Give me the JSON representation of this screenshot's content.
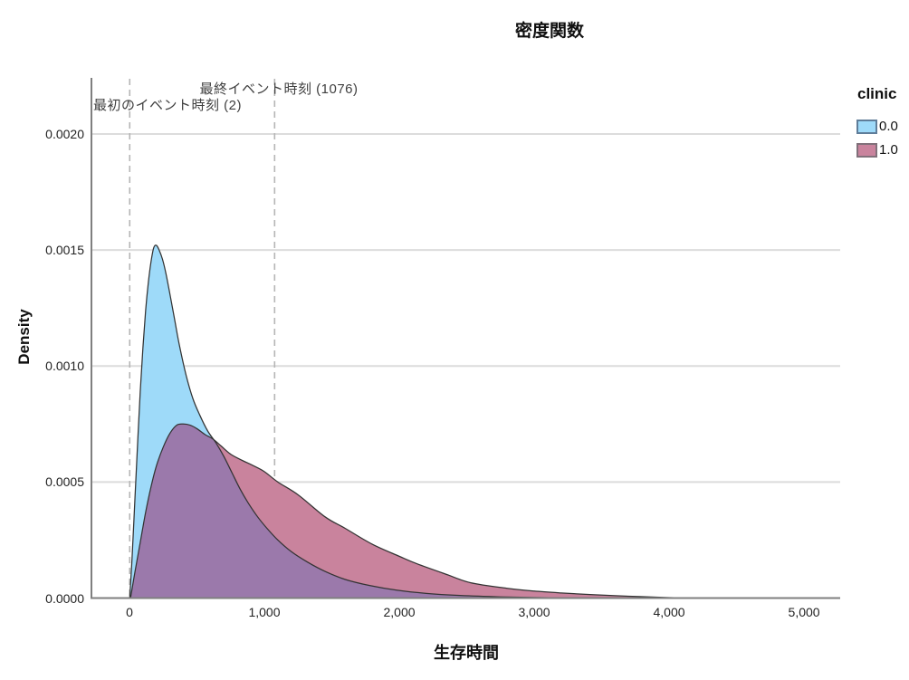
{
  "window": {
    "background": "#ffffff"
  },
  "title": "密度関数",
  "legend": {
    "title": "clinic",
    "items": [
      {
        "label": "0.0",
        "swatch_color": "#9EDAF9",
        "swatch_border": "#5f7d99"
      },
      {
        "label": "1.0",
        "swatch_color": "#C9839D",
        "swatch_border": "#80707a"
      }
    ]
  },
  "chart_data": {
    "type": "area",
    "subtype": "density-curves",
    "title": "密度関数",
    "xlabel": "生存時間",
    "ylabel": "Density",
    "xlim": [
      -275,
      5268
    ],
    "ylim": [
      0,
      0.002238
    ],
    "grid": "horizontal",
    "legend_position": "top-right",
    "legend_title": "clinic",
    "xticks": [
      {
        "value": 0,
        "label": "0"
      },
      {
        "value": 1000,
        "label": "1,000"
      },
      {
        "value": 2000,
        "label": "2,000"
      },
      {
        "value": 3000,
        "label": "3,000"
      },
      {
        "value": 4000,
        "label": "4,000"
      },
      {
        "value": 5000,
        "label": "5,000"
      }
    ],
    "yticks": [
      {
        "value": 0.0,
        "label": "0.0000"
      },
      {
        "value": 0.0005,
        "label": "0.0005"
      },
      {
        "value": 0.001,
        "label": "0.0010"
      },
      {
        "value": 0.0015,
        "label": "0.0015"
      },
      {
        "value": 0.002,
        "label": "0.0020"
      }
    ],
    "reference_lines": [
      {
        "value": 2,
        "label": "最初のイベント時刻 (2)",
        "style": "dashed",
        "color": "#b5b5b5"
      },
      {
        "value": 1076,
        "label": "最終イベント時刻 (1076)",
        "style": "dashed",
        "color": "#b5b5b5"
      }
    ],
    "overlap_color": "#9B79AB",
    "outline_color": "#333333",
    "gridline_color": "#dcdcdc",
    "axis_color": "#7f7f7f",
    "series": [
      {
        "name": "0.0",
        "fill_color": "#9EDAF9",
        "peak": {
          "x": 200,
          "y": 0.00152
        },
        "points": [
          [
            2,
            0
          ],
          [
            20,
            0.00018
          ],
          [
            40,
            0.00042
          ],
          [
            60,
            0.00066
          ],
          [
            80,
            0.00089
          ],
          [
            100,
            0.00108
          ],
          [
            120,
            0.00124
          ],
          [
            140,
            0.00136
          ],
          [
            160,
            0.00145
          ],
          [
            180,
            0.00151
          ],
          [
            200,
            0.00152
          ],
          [
            220,
            0.0015
          ],
          [
            245,
            0.00146
          ],
          [
            270,
            0.0014
          ],
          [
            300,
            0.00131
          ],
          [
            335,
            0.0012
          ],
          [
            370,
            0.00109
          ],
          [
            420,
            0.00096
          ],
          [
            470,
            0.00086
          ],
          [
            520,
            0.00079
          ],
          [
            580,
            0.00072
          ],
          [
            640,
            0.00067
          ],
          [
            700,
            0.00061
          ],
          [
            760,
            0.00054
          ],
          [
            820,
            0.00047
          ],
          [
            880,
            0.00041
          ],
          [
            950,
            0.00035
          ],
          [
            1020,
            0.0003
          ],
          [
            1100,
            0.00025
          ],
          [
            1200,
            0.0002
          ],
          [
            1320,
            0.000155
          ],
          [
            1450,
            0.000115
          ],
          [
            1600,
            8e-05
          ],
          [
            1780,
            5.4e-05
          ],
          [
            1980,
            3.4e-05
          ],
          [
            2200,
            2e-05
          ],
          [
            2450,
            1.1e-05
          ],
          [
            2750,
            5e-06
          ],
          [
            3050,
            2e-06
          ],
          [
            3350,
            0
          ]
        ]
      },
      {
        "name": "1.0",
        "fill_color": "#C9839D",
        "peak": {
          "x": 400,
          "y": 0.00075
        },
        "points": [
          [
            8,
            0
          ],
          [
            40,
            0.00011
          ],
          [
            80,
            0.00024
          ],
          [
            120,
            0.00037
          ],
          [
            160,
            0.00048
          ],
          [
            200,
            0.00057
          ],
          [
            250,
            0.00065
          ],
          [
            300,
            0.00071
          ],
          [
            350,
            0.000745
          ],
          [
            400,
            0.00075
          ],
          [
            450,
            0.000745
          ],
          [
            500,
            0.00073
          ],
          [
            560,
            0.000705
          ],
          [
            620,
            0.000685
          ],
          [
            680,
            0.000655
          ],
          [
            750,
            0.00062
          ],
          [
            830,
            0.000595
          ],
          [
            920,
            0.00057
          ],
          [
            1000,
            0.000545
          ],
          [
            1100,
            0.0005
          ],
          [
            1250,
            0.000445
          ],
          [
            1450,
            0.00035
          ],
          [
            1600,
            0.0003
          ],
          [
            1800,
            0.000232
          ],
          [
            2000,
            0.00018
          ],
          [
            2130,
            0.000148
          ],
          [
            2350,
            0.000102
          ],
          [
            2530,
            6.6e-05
          ],
          [
            2800,
            4.2e-05
          ],
          [
            3000,
            3e-05
          ],
          [
            3200,
            2.2e-05
          ],
          [
            3450,
            1.4e-05
          ],
          [
            3700,
            8e-06
          ],
          [
            3950,
            3e-06
          ],
          [
            4150,
            0
          ]
        ]
      }
    ]
  }
}
